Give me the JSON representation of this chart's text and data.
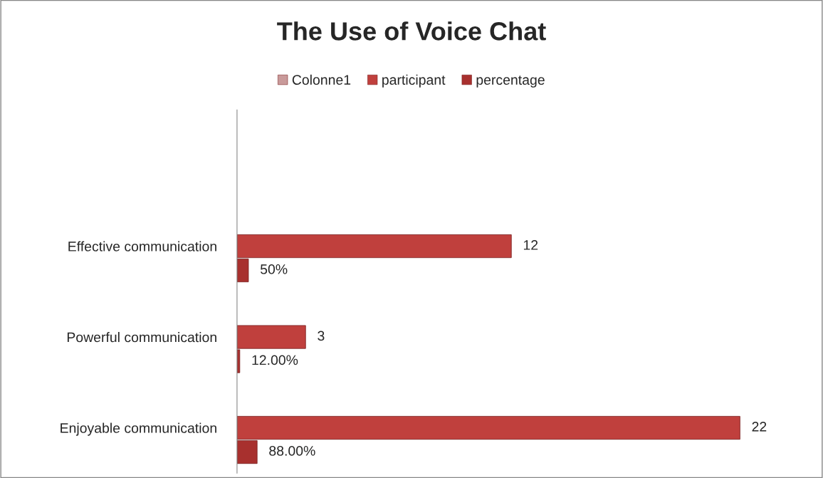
{
  "chart_data": {
    "type": "bar",
    "orientation": "horizontal",
    "title": "The Use of Voice Chat",
    "categories": [
      null,
      "Effective communication",
      "Powerful communication",
      "Enjoyable communication"
    ],
    "series": [
      {
        "name": "Colonne1",
        "color": "#c99a9a",
        "values": [
          null,
          null,
          null,
          null
        ]
      },
      {
        "name": "participant",
        "color": "#c0403d",
        "values": [
          null,
          12,
          3,
          22
        ],
        "value_labels": [
          null,
          "12",
          "3",
          "22"
        ]
      },
      {
        "name": "percentage",
        "color": "#a8302e",
        "values": [
          null,
          0.5,
          0.12,
          0.88
        ],
        "value_labels": [
          null,
          "50%",
          "12.00%",
          "88.00%"
        ]
      }
    ],
    "legend": "top",
    "grid": false
  }
}
